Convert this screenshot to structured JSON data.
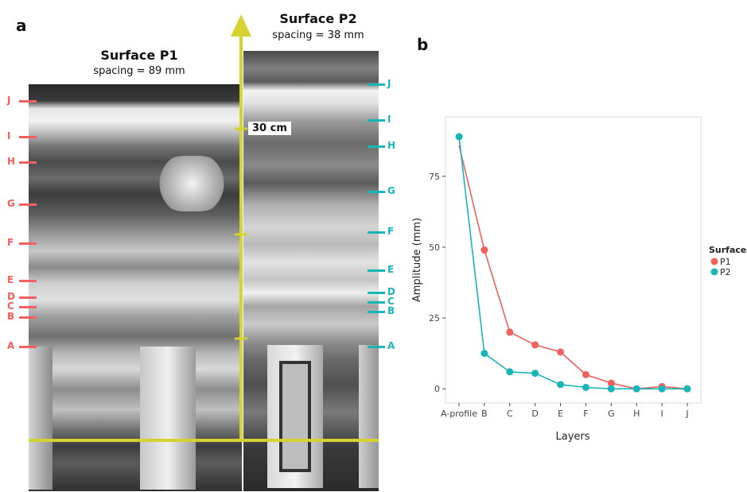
{
  "figure": {
    "panel_a_letter": "a",
    "panel_b_letter": "b",
    "surface_p1": {
      "title": "Surface P1",
      "spacing": "spacing = 89 mm"
    },
    "surface_p2": {
      "title": "Surface P2",
      "spacing": "spacing = 38 mm"
    },
    "scale_label": "30 cm",
    "layer_labels": [
      "A",
      "B",
      "C",
      "D",
      "E",
      "F",
      "G",
      "H",
      "I",
      "J"
    ],
    "colors": {
      "p1": "#f0605d",
      "p2": "#19b6b9",
      "axis_overlay": "#d6d232"
    }
  },
  "chart_data": {
    "type": "line",
    "categories": [
      "A-profile",
      "B",
      "C",
      "D",
      "E",
      "F",
      "G",
      "H",
      "I",
      "J"
    ],
    "series": [
      {
        "name": "P1",
        "color": "#f0605d",
        "values": [
          null,
          49,
          20,
          15.5,
          13,
          5,
          2,
          0,
          0.8,
          0
        ]
      },
      {
        "name": "P2",
        "color": "#19b6b9",
        "values": [
          89,
          12.5,
          6,
          5.5,
          1.5,
          0.5,
          0,
          0,
          0,
          0
        ]
      }
    ],
    "series_start": {
      "P1": 86
    },
    "xlabel": "Layers",
    "ylabel": "Amplitude (mm)",
    "ylim": [
      -5,
      96
    ],
    "yticks": [
      0,
      25,
      50,
      75
    ],
    "legend_title": "Surface",
    "legend_position": "right",
    "grid": false
  }
}
